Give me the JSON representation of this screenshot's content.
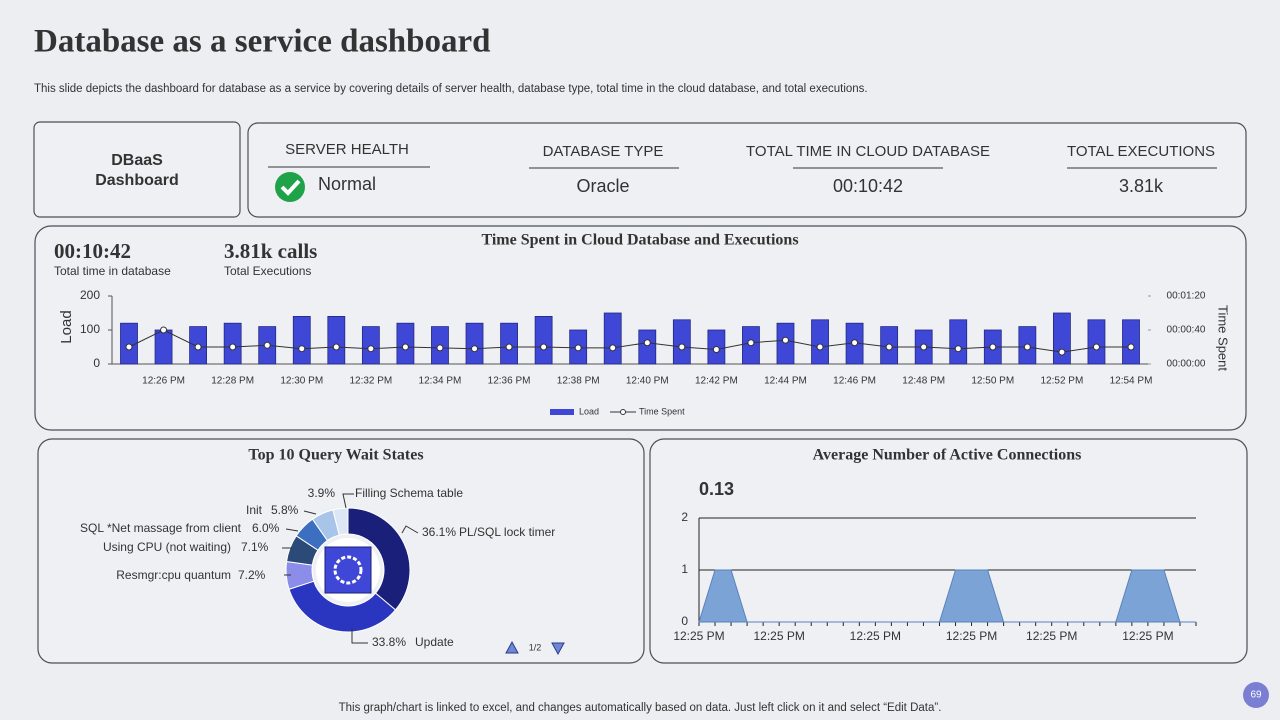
{
  "header": {
    "title": "Database as a service dashboard",
    "subtitle": "This slide depicts the dashboard for database as a service by covering details of server health, database type, total time in the cloud database, and total executions."
  },
  "sidebar": {
    "title_lines": [
      "DBaaS",
      "Dashboard"
    ]
  },
  "kpis": [
    {
      "label": "SERVER HEALTH",
      "value": "Normal"
    },
    {
      "label": "DATABASE TYPE",
      "value": "Oracle"
    },
    {
      "label": "TOTAL TIME IN CLOUD DATABASE",
      "value": "00:10:42"
    },
    {
      "label": "TOTAL EXECUTIONS",
      "value": "3.81k"
    }
  ],
  "summary": [
    {
      "value": "00:10:42",
      "label": "Total time in database"
    },
    {
      "value": "3.81k calls",
      "label": "Total Executions"
    }
  ],
  "chart_data": [
    {
      "type": "bar",
      "title": "Time Spent in Cloud Database and Executions",
      "y_label": "Load",
      "y2_label": "Time Spent",
      "categories": [
        null,
        "12:26 PM",
        null,
        "12:28 PM",
        null,
        "12:30 PM",
        null,
        "12:32 PM",
        null,
        "12:34 PM",
        null,
        "12:36 PM",
        null,
        "12:38 PM",
        null,
        "12:40 PM",
        null,
        "12:42 PM",
        null,
        "12:44 PM",
        null,
        "12:46 PM",
        null,
        "12:48 PM",
        null,
        "12:50 PM",
        null,
        "12:52 PM",
        null,
        "12:54 PM"
      ],
      "ylim": [
        0,
        200
      ],
      "yticks": [
        0,
        100,
        200
      ],
      "y2lim": [
        0,
        80
      ],
      "y2ticks": [
        {
          "value": 0,
          "label": "00:00:00"
        },
        {
          "value": 40,
          "label": "00:00:40"
        },
        {
          "value": 80,
          "label": "00:01:20"
        }
      ],
      "legend": "bottom",
      "series": [
        {
          "name": "Load",
          "type": "bar",
          "color": "#3f48d6",
          "values": [
            120,
            100,
            110,
            120,
            110,
            140,
            140,
            110,
            120,
            110,
            120,
            120,
            140,
            100,
            150,
            100,
            130,
            100,
            110,
            120,
            130,
            120,
            110,
            100,
            130,
            100,
            110,
            150,
            130,
            130
          ]
        },
        {
          "name": "Time Spent",
          "type": "line",
          "axis": "y2",
          "color": "#333333",
          "values": [
            20,
            40,
            20,
            20,
            22,
            18,
            20,
            18,
            20,
            19,
            18,
            20,
            20,
            19,
            19,
            25,
            20,
            17,
            25,
            28,
            20,
            25,
            20,
            20,
            18,
            20,
            20,
            14,
            20,
            20
          ]
        }
      ]
    },
    {
      "type": "pie",
      "title": "Top 10 Query Wait States",
      "categories": [
        "PL/SQL lock timer",
        "Update",
        "Resmgr:cpu quantum",
        "Using CPU (not waiting)",
        "SQL *Net massage from client",
        "Init",
        "Filling Schema table"
      ],
      "values": [
        36.1,
        33.8,
        7.2,
        7.1,
        6.0,
        5.8,
        3.9
      ],
      "value_labels": [
        "36.1%",
        "33.8%",
        "7.2%",
        "7.1%",
        "6.0%",
        "5.8%",
        "3.9%"
      ],
      "colors": [
        "#1a1f7a",
        "#2a35c0",
        "#8b8de8",
        "#2c4a78",
        "#3d6fc0",
        "#a8c4e8",
        "#dde6f5"
      ],
      "pager": "1/2"
    },
    {
      "type": "area",
      "title": "Average Number of Active Connections",
      "annotation": "0.13",
      "categories": [
        "12:25 PM",
        null,
        null,
        null,
        null,
        "12:25 PM",
        null,
        null,
        null,
        null,
        null,
        "12:25 PM",
        null,
        null,
        null,
        null,
        null,
        "12:25 PM",
        null,
        null,
        null,
        null,
        "12:25 PM",
        null,
        null,
        null,
        null,
        null,
        "12:25 PM",
        null,
        null,
        null
      ],
      "values": [
        0,
        1,
        1,
        0,
        0,
        0,
        0,
        0,
        0,
        0,
        0,
        0,
        0,
        0,
        0,
        0,
        1,
        1,
        1,
        0,
        0,
        0,
        0,
        0,
        0,
        0,
        0,
        1,
        1,
        1,
        0,
        0
      ],
      "color": "#7ba3d6",
      "ylim": [
        0,
        2
      ],
      "yticks": [
        0,
        1,
        2
      ],
      "grid": true
    }
  ],
  "footer": {
    "note": "This graph/chart is linked to excel,  and changes automatically based on data. Just left click on it and select “Edit Data”.",
    "page": "69"
  }
}
